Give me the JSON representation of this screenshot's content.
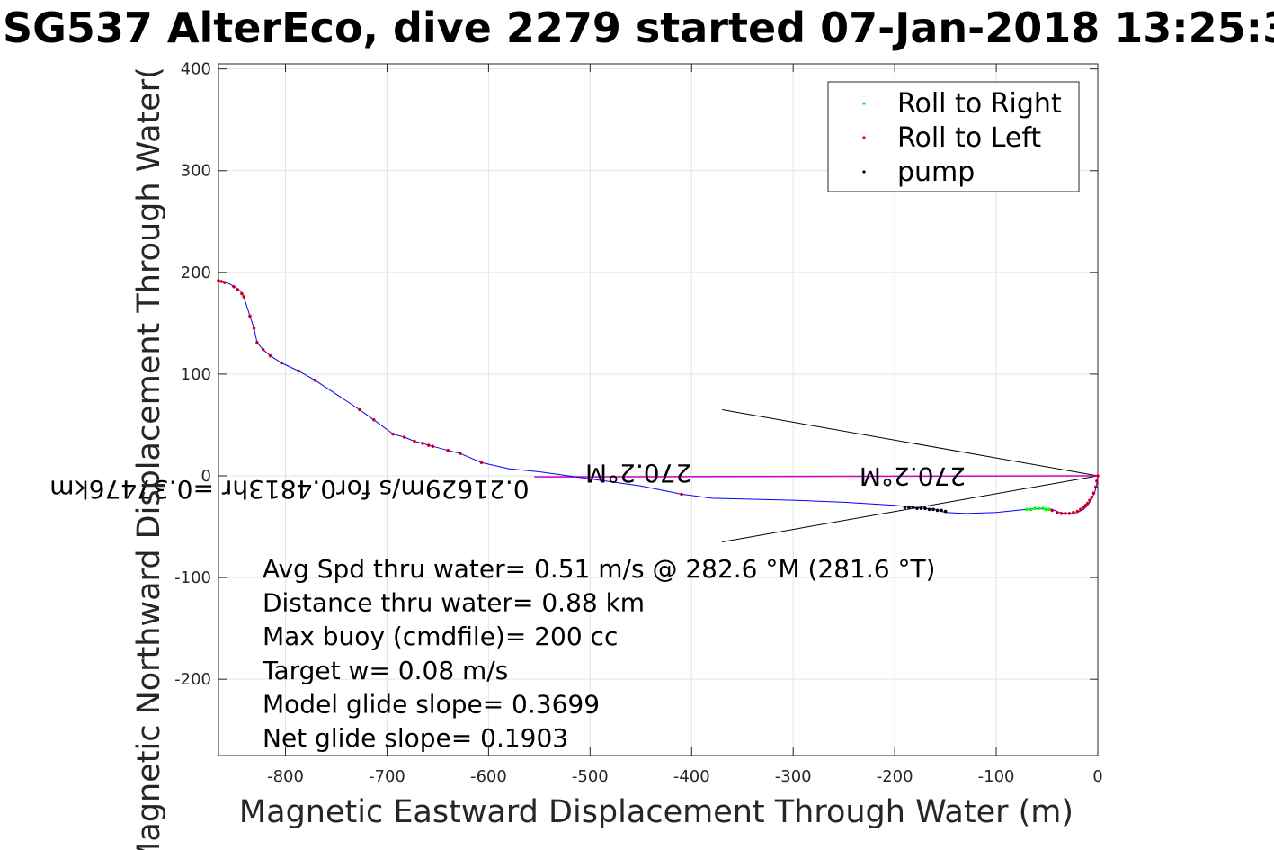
{
  "chart_data": {
    "type": "line",
    "title": "SG537 AlterEco, dive 2279 started 07-Jan-2018 13:25:3",
    "xlabel": "Magnetic Eastward Displacement Through Water (m)",
    "ylabel": "Magnetic Northward Displacement Through Water(",
    "xlim": [
      -866,
      0
    ],
    "ylim": [
      -275,
      405
    ],
    "xticks": [
      -800,
      -700,
      -600,
      -500,
      -400,
      -300,
      -200,
      -100,
      0
    ],
    "yticks": [
      400,
      300,
      200,
      100,
      0,
      -100,
      -200
    ],
    "grid": true,
    "legend_position": "top-right",
    "legend": [
      {
        "label": "Roll to Right",
        "color": "#00ff00"
      },
      {
        "label": "Roll to Left",
        "color": "#ff0000"
      },
      {
        "label": "pump",
        "color": "#000000"
      }
    ],
    "track": {
      "name": "",
      "color": "#0000ff",
      "x": [
        -866,
        -860,
        -850,
        -844,
        -841,
        -835,
        -831,
        -828,
        -822,
        -815,
        -804,
        -787,
        -771,
        -727,
        -713,
        -694,
        -683,
        -673,
        -665,
        -659,
        -655,
        -640,
        -628,
        -607,
        -580,
        -550,
        -500,
        -450,
        -410,
        -380,
        -340,
        -300,
        -250,
        -200,
        -180,
        -160,
        -150,
        -130,
        -100,
        -70,
        -55,
        -45,
        -38,
        -32,
        -25,
        -20,
        -14,
        -10,
        -6,
        -3,
        -1,
        0
      ],
      "y": [
        192,
        191,
        186,
        181,
        176,
        157,
        145,
        131,
        124,
        118,
        111,
        103,
        94,
        65,
        55,
        41,
        38,
        34,
        32,
        30,
        29,
        25,
        22,
        13,
        7,
        4,
        -3,
        -10,
        -18,
        -22,
        -23,
        -24,
        -26,
        -29,
        -31,
        -33,
        -36,
        -37,
        -36,
        -33,
        -32,
        -33,
        -36,
        -37,
        -37,
        -36,
        -33,
        -29,
        -23,
        -16,
        -8,
        0
      ]
    },
    "roll_left_x": [
      -866,
      -863,
      -860,
      -851,
      -847,
      -843,
      -841,
      -835,
      -831,
      -828,
      -822,
      -815,
      -804,
      -787,
      -771,
      -727,
      -713,
      -694,
      -683,
      -673,
      -665,
      -659,
      -655,
      -640,
      -628,
      -607,
      -410,
      -45,
      -40,
      -36,
      -32,
      -28,
      -24,
      -20,
      -17,
      -14,
      -12,
      -10,
      -8,
      -6,
      -4,
      -2,
      -1,
      0
    ],
    "roll_left_y": [
      192,
      191,
      190,
      186,
      183,
      179,
      176,
      157,
      145,
      131,
      124,
      118,
      111,
      103,
      94,
      65,
      55,
      41,
      38,
      34,
      32,
      30,
      29,
      25,
      22,
      13,
      -18,
      -34,
      -36,
      -37,
      -37,
      -37,
      -36,
      -35,
      -33,
      -31,
      -29,
      -27,
      -24,
      -21,
      -17,
      -11,
      -5,
      0
    ],
    "roll_right_x": [
      -70,
      -66,
      -62,
      -58,
      -54,
      -51,
      -48
    ],
    "roll_right_y": [
      -33,
      -33,
      -32,
      -32,
      -32,
      -33,
      -33
    ],
    "pump_x": [
      -190,
      -186,
      -182,
      -178,
      -174,
      -170,
      -166,
      -162,
      -158,
      -154,
      -150
    ],
    "pump_y": [
      -31,
      -31,
      -31,
      -32,
      -32,
      -32,
      -33,
      -33,
      -34,
      -34,
      -35
    ],
    "pink_line": {
      "x": [
        -555,
        0
      ],
      "y": [
        -1,
        0
      ]
    },
    "cone_lines": [
      {
        "x": [
          -370,
          0
        ],
        "y": [
          65,
          0
        ]
      },
      {
        "x": [
          -370,
          0
        ],
        "y": [
          -65,
          0
        ]
      }
    ],
    "flipped_labels": [
      {
        "text": "0.21629m/s for0.4813hr =0.37476km",
        "x": -560,
        "y": -5
      },
      {
        "text": "270.2°M",
        "x": -400,
        "y": 11
      },
      {
        "text": "270.2°M",
        "x": -130,
        "y": 8
      }
    ],
    "annotations": [
      "Avg Spd thru water=  0.51 m/s @ 282.6 °M (281.6 °T)",
      "Distance thru water=  0.88 km",
      "Max buoy (cmdfile)= 200 cc",
      "Target w= 0.08 m/s",
      "Model glide slope= 0.3699",
      "Net glide slope= 0.1903"
    ]
  }
}
